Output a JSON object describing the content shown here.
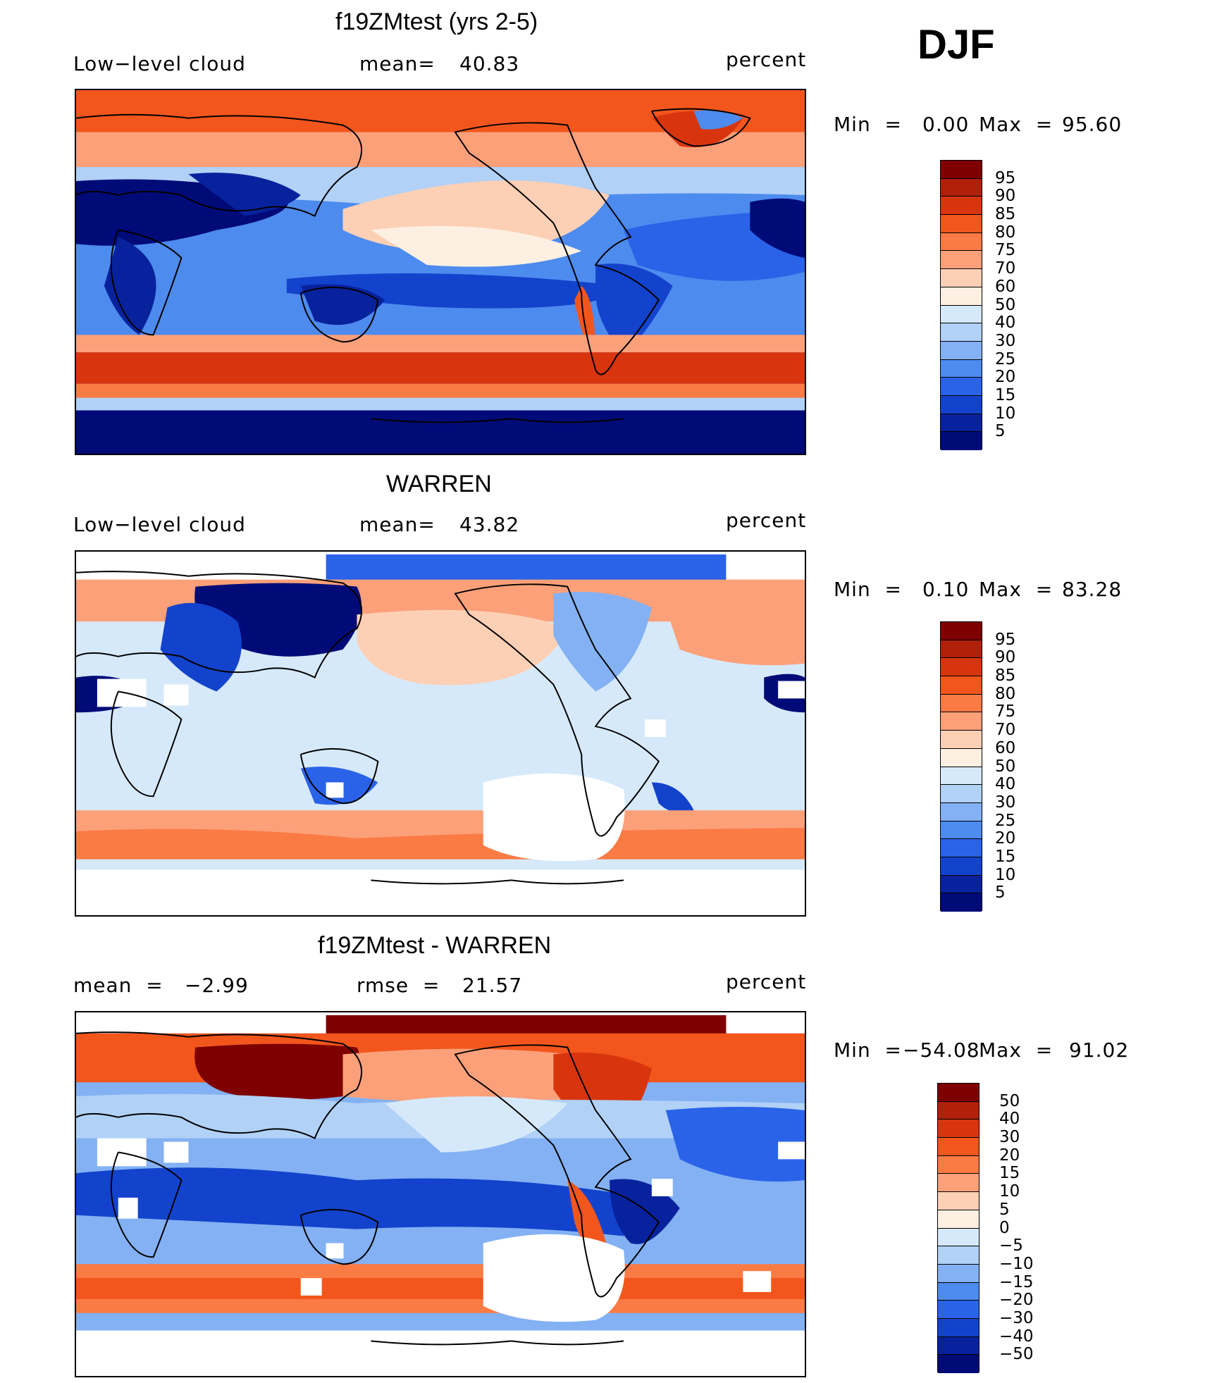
{
  "season": "DJF",
  "panels": [
    {
      "title": "f19ZMtest (yrs 2-5)",
      "left_label": "Low−level cloud",
      "stat1_label": "mean=",
      "stat1_value": "40.83",
      "units": "percent",
      "min_label": "Min  =",
      "min_value": "0.00",
      "max_label": "Max  =",
      "max_value": "95.60",
      "colorbar_labels": [
        "95",
        "90",
        "85",
        "80",
        "75",
        "70",
        "60",
        "50",
        "40",
        "30",
        "25",
        "20",
        "15",
        "10",
        "5"
      ]
    },
    {
      "title": "WARREN",
      "left_label": "Low−level cloud",
      "stat1_label": "mean=",
      "stat1_value": "43.82",
      "units": "percent",
      "min_label": "Min  =",
      "min_value": "0.10",
      "max_label": "Max  =",
      "max_value": "83.28",
      "colorbar_labels": [
        "95",
        "90",
        "85",
        "80",
        "75",
        "70",
        "60",
        "50",
        "40",
        "30",
        "25",
        "20",
        "15",
        "10",
        "5"
      ]
    },
    {
      "title": "f19ZMtest - WARREN",
      "stat0_label": "mean  =",
      "stat0_value": "−2.99",
      "stat1_label": "rmse  =",
      "stat1_value": "21.57",
      "units": "percent",
      "min_label": "Min  =",
      "min_value": "−54.08",
      "max_label": "Max  =",
      "max_value": "91.02",
      "colorbar_labels": [
        "50",
        "40",
        "30",
        "20",
        "15",
        "10",
        "5",
        "0",
        "−5",
        "−10",
        "−15",
        "−20",
        "−30",
        "−40",
        "−50"
      ]
    }
  ],
  "colorscale_abs": [
    "#7f0000",
    "#b0200a",
    "#d8350f",
    "#f3561c",
    "#fb7b45",
    "#fca07a",
    "#fdd0b6",
    "#fdf0e2",
    "#d6e9fb",
    "#b1d1f7",
    "#83b1f3",
    "#4d8bee",
    "#2a63e8",
    "#1343cc",
    "#08229d",
    "#000b78"
  ],
  "colorscale_diff": [
    "#7f0000",
    "#b0200a",
    "#d8350f",
    "#f3561c",
    "#fb7b45",
    "#fca07a",
    "#fdd0b6",
    "#fdf0e2",
    "#d6e9fb",
    "#b1d1f7",
    "#83b1f3",
    "#4d8bee",
    "#2a63e8",
    "#1343cc",
    "#08229d",
    "#000b78"
  ]
}
